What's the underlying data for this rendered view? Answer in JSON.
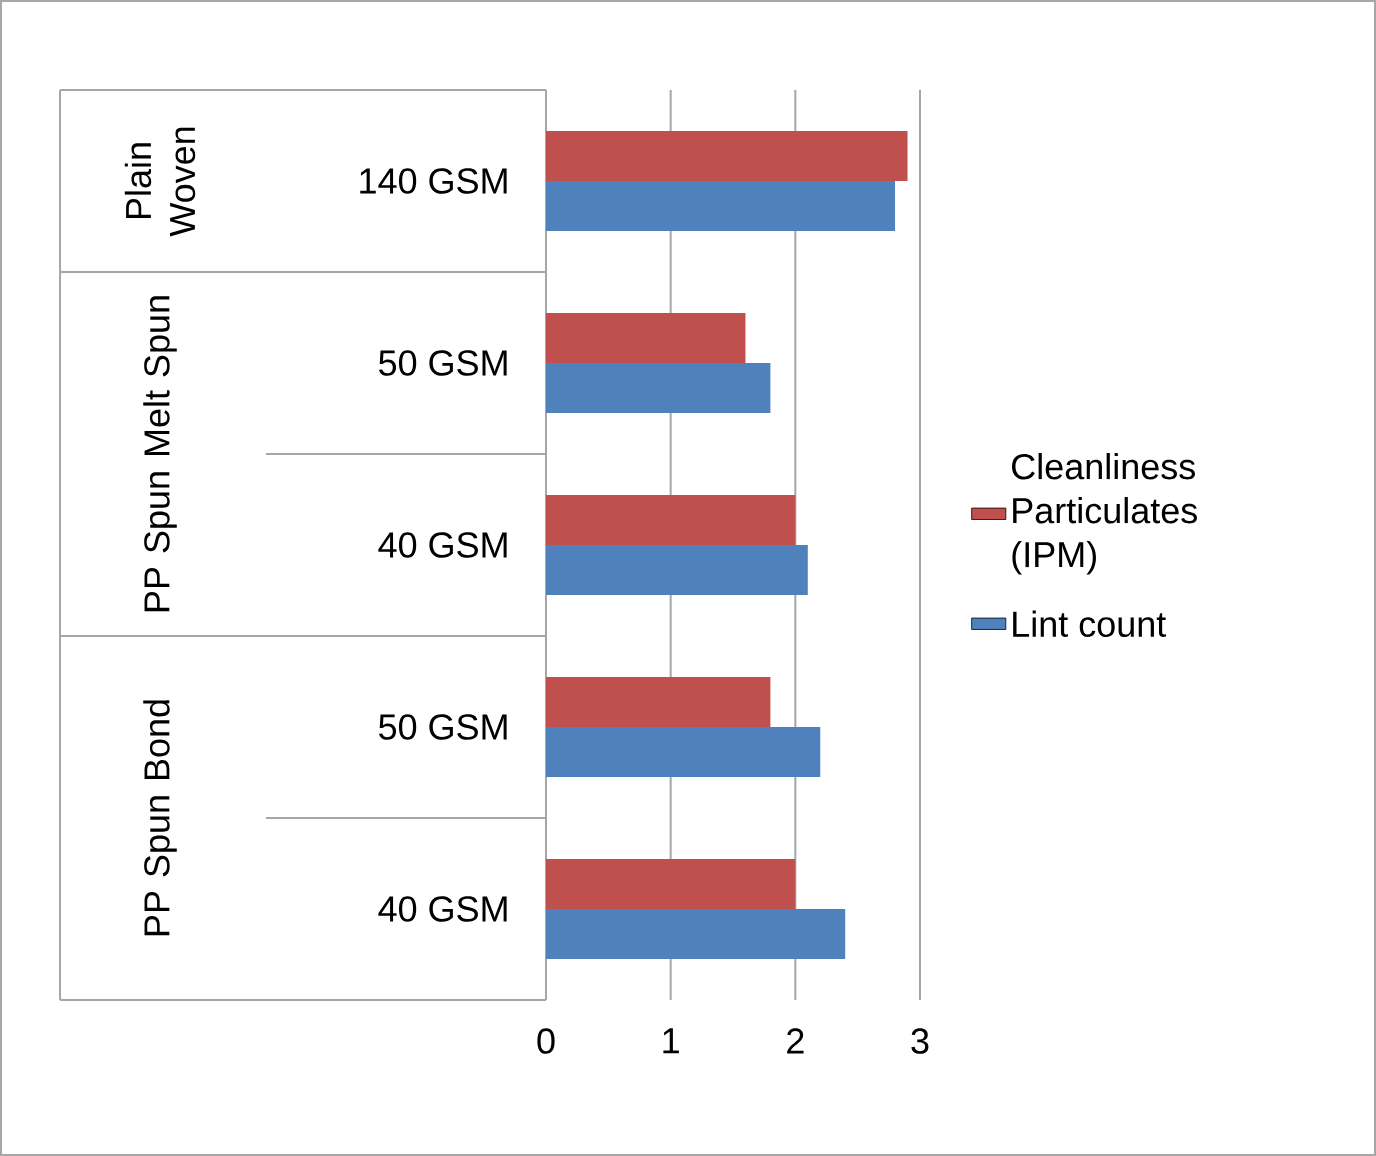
{
  "chart_data": {
    "type": "bar",
    "orientation": "horizontal",
    "categories": [
      "140 GSM",
      "50 GSM",
      "40 GSM",
      "50 GSM",
      "40 GSM"
    ],
    "series": [
      {
        "name": "Cleanliness Particulates (IPM)",
        "color": "#c0504d",
        "values": [
          2.9,
          1.6,
          2.0,
          1.8,
          2.0
        ]
      },
      {
        "name": "Lint count",
        "color": "#4f81bd",
        "values": [
          2.8,
          1.8,
          2.1,
          2.2,
          2.4
        ]
      }
    ],
    "xlim": [
      0,
      3
    ],
    "xticks": [
      0,
      1,
      2,
      3
    ],
    "grid": "x",
    "legend": "right",
    "annotations": [
      "Plain Woven",
      "PP Spun Melt Spun",
      "PP Spun Bond"
    ]
  }
}
